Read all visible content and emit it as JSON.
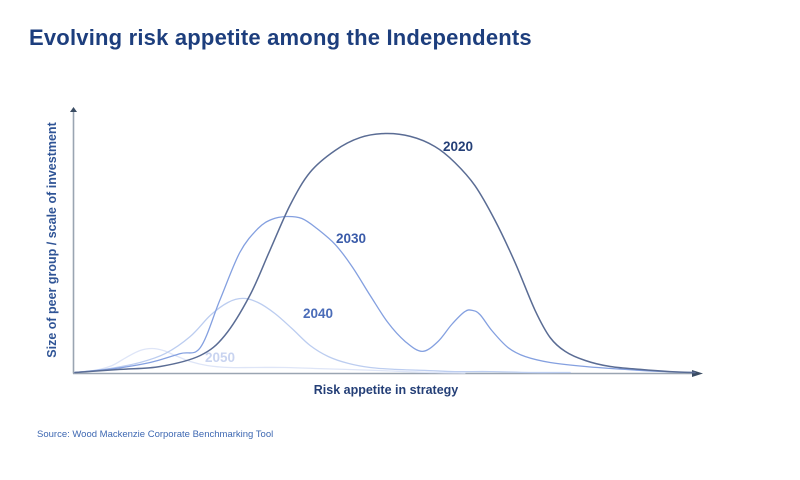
{
  "page": {
    "title": "Evolving risk appetite among the Independents",
    "source": "Source: Wood Mackenzie Corporate Benchmarking Tool"
  },
  "chart_data": {
    "type": "line",
    "title": "Evolving risk appetite among the Independents",
    "subtitle": "",
    "xlabel": "Risk appetite in strategy",
    "ylabel": "Size of peer group / scale of investment",
    "grid": false,
    "legend_position": "inline-labels-on-curves",
    "axes_style": {
      "ticks": false,
      "arrows": true,
      "axis_color": "#9aa5b2",
      "arrow_color": "#3a4c63",
      "x_range": [
        0,
        100
      ],
      "y_range": [
        0,
        100
      ],
      "note": "conceptual axes without tick marks; point coords are percent of plot width (x) and percent of max curve height (y)"
    },
    "series": [
      {
        "name": "2020",
        "color": "#5a6c94",
        "label_color": "#243f77",
        "stroke_width": 1.5,
        "points": [
          [
            0.3,
            0.4
          ],
          [
            7.5,
            1.7
          ],
          [
            13.9,
            2.9
          ],
          [
            20.3,
            7.5
          ],
          [
            24.2,
            15.8
          ],
          [
            28.2,
            32.5
          ],
          [
            31.4,
            51.3
          ],
          [
            34.6,
            70.0
          ],
          [
            37.8,
            83.8
          ],
          [
            41.8,
            92.9
          ],
          [
            45.8,
            98.3
          ],
          [
            49.8,
            100.0
          ],
          [
            53.8,
            98.8
          ],
          [
            57.7,
            94.6
          ],
          [
            60.9,
            87.9
          ],
          [
            64.1,
            78.3
          ],
          [
            67.3,
            63.8
          ],
          [
            70.5,
            46.3
          ],
          [
            73.7,
            26.3
          ],
          [
            76.1,
            15.0
          ],
          [
            78.5,
            9.2
          ],
          [
            81.7,
            5.4
          ],
          [
            85.7,
            2.9
          ],
          [
            90.5,
            1.7
          ],
          [
            95.2,
            0.8
          ],
          [
            99.2,
            0.4
          ]
        ]
      },
      {
        "name": "2030",
        "color": "#84a0e0",
        "label_color": "#3a5ba9",
        "stroke_width": 1.3,
        "points": [
          [
            0.3,
            0.4
          ],
          [
            6.7,
            2.1
          ],
          [
            12.3,
            4.6
          ],
          [
            17.1,
            8.3
          ],
          [
            20.3,
            10.8
          ],
          [
            23.4,
            30.4
          ],
          [
            26.6,
            50.4
          ],
          [
            29.5,
            60.4
          ],
          [
            31.7,
            64.2
          ],
          [
            34.1,
            65.4
          ],
          [
            36.5,
            64.6
          ],
          [
            38.9,
            60.4
          ],
          [
            41.8,
            53.8
          ],
          [
            44.5,
            44.6
          ],
          [
            47.4,
            32.5
          ],
          [
            50.2,
            21.3
          ],
          [
            53.0,
            13.3
          ],
          [
            55.7,
            9.2
          ],
          [
            58.2,
            13.3
          ],
          [
            60.4,
            20.4
          ],
          [
            62.5,
            25.8
          ],
          [
            63.7,
            26.3
          ],
          [
            64.9,
            24.6
          ],
          [
            66.8,
            17.9
          ],
          [
            69.4,
            10.8
          ],
          [
            72.1,
            7.1
          ],
          [
            76.1,
            4.6
          ],
          [
            81.7,
            2.9
          ],
          [
            88.0,
            1.7
          ],
          [
            94.4,
            0.8
          ],
          [
            99.2,
            0.4
          ]
        ]
      },
      {
        "name": "2040",
        "color": "#bccdf0",
        "label_color": "#4a6cb8",
        "stroke_width": 1.3,
        "points": [
          [
            0.3,
            0.4
          ],
          [
            5.9,
            2.1
          ],
          [
            10.7,
            4.6
          ],
          [
            14.7,
            8.3
          ],
          [
            18.7,
            15.4
          ],
          [
            21.9,
            24.2
          ],
          [
            24.7,
            29.6
          ],
          [
            27.1,
            31.3
          ],
          [
            29.5,
            29.6
          ],
          [
            32.2,
            25.0
          ],
          [
            34.9,
            18.8
          ],
          [
            37.8,
            11.7
          ],
          [
            40.7,
            7.1
          ],
          [
            43.9,
            4.2
          ],
          [
            47.4,
            2.5
          ],
          [
            51.4,
            1.7
          ],
          [
            56.1,
            1.3
          ],
          [
            60.9,
            0.8
          ],
          [
            66.5,
            0.8
          ],
          [
            72.9,
            0.4
          ],
          [
            79.3,
            0.4
          ]
        ]
      },
      {
        "name": "2050",
        "color": "#dee5f7",
        "label_color": "#c9d4f0",
        "stroke_width": 1.3,
        "points": [
          [
            0.3,
            0.4
          ],
          [
            3.5,
            1.3
          ],
          [
            6.2,
            3.3
          ],
          [
            8.5,
            6.7
          ],
          [
            10.7,
            9.6
          ],
          [
            12.6,
            10.4
          ],
          [
            14.4,
            9.6
          ],
          [
            16.3,
            7.5
          ],
          [
            18.7,
            5.0
          ],
          [
            21.5,
            3.3
          ],
          [
            25.0,
            2.5
          ],
          [
            29.0,
            2.5
          ],
          [
            33.8,
            2.5
          ],
          [
            38.6,
            2.1
          ],
          [
            43.4,
            1.7
          ],
          [
            48.2,
            1.3
          ],
          [
            53.0,
            0.8
          ],
          [
            57.7,
            0.4
          ],
          [
            62.5,
            0.2
          ]
        ]
      }
    ]
  }
}
